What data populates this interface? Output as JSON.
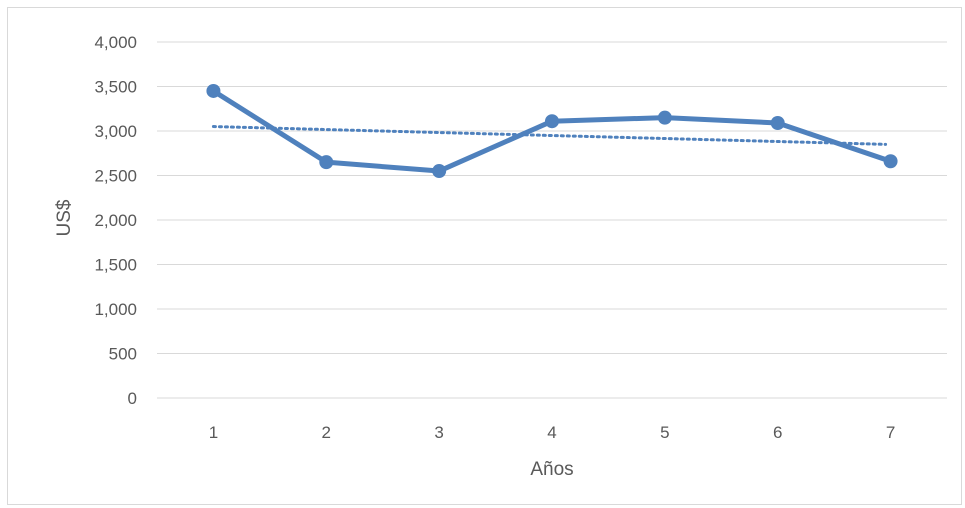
{
  "chart_data": {
    "type": "line",
    "title": "",
    "xlabel": "Años",
    "ylabel": "US$",
    "categories": [
      "1",
      "2",
      "3",
      "4",
      "5",
      "6",
      "7"
    ],
    "series": [
      {
        "values": [
          3450,
          2650,
          2550,
          3110,
          3150,
          3090,
          2660
        ]
      }
    ],
    "trendline": {
      "type": "linear",
      "style": "dotted",
      "start": 3050,
      "end": 2850
    },
    "ylim": [
      0,
      4000
    ],
    "yticks": [
      "0",
      "500",
      "1,000",
      "1,500",
      "2,000",
      "2,500",
      "3,000",
      "3,500",
      "4,000"
    ],
    "grid": true,
    "legend": "none",
    "colors": {
      "series": "#4f81bd",
      "trend": "#4f81bd",
      "grid": "#d9d9d9",
      "text": "#595959"
    }
  }
}
